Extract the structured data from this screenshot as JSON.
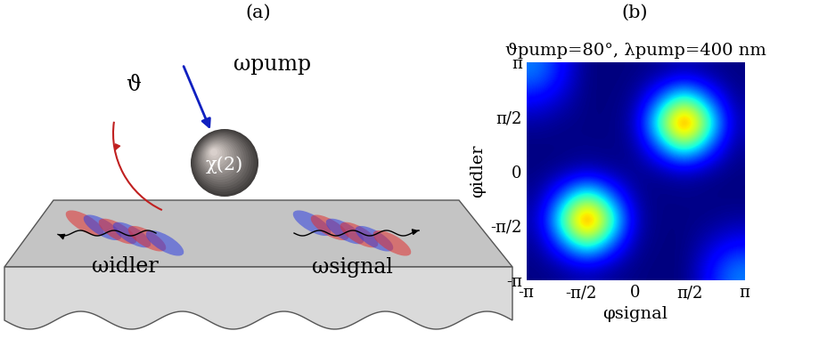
{
  "panels": {
    "a": "(a)",
    "b": "(b)"
  },
  "diagram": {
    "pump": "ωpump",
    "angle": "ϑ",
    "nonlinearity": "χ(2)",
    "idler": "ωidler",
    "signal": "ωsignal"
  },
  "chart_data": {
    "type": "heatmap",
    "title": "ϑpump=80°, λpump=400 nm",
    "x_label": "φsignal",
    "y_label": "φidler",
    "x": [
      -3.14159,
      -2.35619,
      -1.5708,
      -0.7854,
      0,
      0.7854,
      1.5708,
      2.35619,
      3.14159
    ],
    "y": [
      -3.14159,
      -2.35619,
      -1.5708,
      -0.7854,
      0,
      0.7854,
      1.5708,
      2.35619,
      3.14159
    ],
    "cells": [
      [
        0.005,
        0.022,
        0.047,
        0.022,
        0.005,
        0,
        0,
        0.12,
        0.25
      ],
      [
        0.022,
        0.22,
        0.47,
        0.22,
        0.022,
        0.002,
        0,
        0.06,
        0.12
      ],
      [
        0.047,
        0.47,
        1.0,
        0.47,
        0.047,
        0.002,
        0.005,
        0.01,
        0.03
      ],
      [
        0.022,
        0.22,
        0.47,
        0.22,
        0.022,
        0.005,
        0.01,
        0.005,
        0
      ],
      [
        0.005,
        0.022,
        0.047,
        0.022,
        0.01,
        0.022,
        0.047,
        0.022,
        0.005
      ],
      [
        0,
        0.005,
        0.01,
        0.005,
        0.022,
        0.22,
        0.47,
        0.22,
        0.022
      ],
      [
        0.03,
        0.01,
        0.005,
        0.002,
        0.047,
        0.47,
        1.0,
        0.47,
        0.047
      ],
      [
        0.12,
        0.06,
        0,
        0.002,
        0.022,
        0.22,
        0.47,
        0.22,
        0.022
      ],
      [
        0.25,
        0.12,
        0,
        0,
        0.005,
        0.022,
        0.047,
        0.022,
        0.005
      ]
    ],
    "xlim": [
      -3.14159,
      3.14159
    ],
    "ylim": [
      -3.14159,
      3.14159
    ],
    "xticks": [
      {
        "value": -3.14159,
        "label": "-π"
      },
      {
        "value": -1.5708,
        "label": "-π/2"
      },
      0,
      {
        "value": 1.5708,
        "label": "π/2"
      },
      {
        "value": 3.14159,
        "label": "π"
      }
    ],
    "yticks": [
      {
        "value": -3.14159,
        "label": "-π"
      },
      {
        "value": -1.5708,
        "label": "-π/2"
      },
      0,
      {
        "value": 1.5708,
        "label": "π/2"
      },
      {
        "value": 3.14159,
        "label": "π"
      }
    ],
    "tick_labels": true
  }
}
